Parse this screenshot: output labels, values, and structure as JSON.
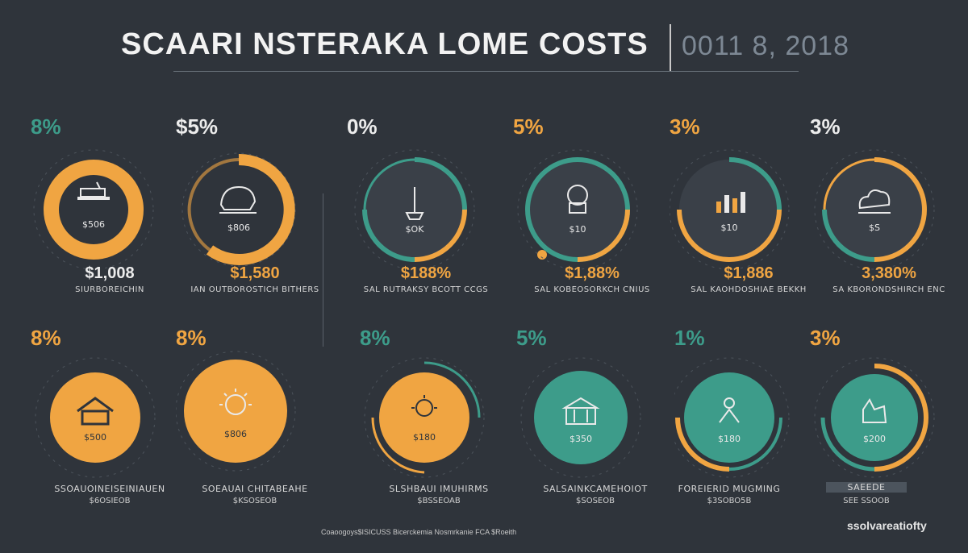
{
  "header": {
    "title": "SCAARI NSTERAKA LOME COSTS",
    "subtitle": "0011 8, 2018"
  },
  "colors": {
    "background": "#2f343b",
    "orange": "#f0a542",
    "teal": "#3d9c8a",
    "dark_disc": "#3a4048",
    "text": "#ececec"
  },
  "stats_row1": [
    {
      "pct": "8%",
      "pct_color": "teal",
      "amount": "$1,008",
      "caption": "SIURBOREICHIN",
      "icon_text": "$506",
      "icon": "desk-icon",
      "disc": "orange-full"
    },
    {
      "pct": "$5%",
      "pct_color": "white",
      "amount": "$1,580",
      "caption": "IAN OUTBOROSTICH BITHERS",
      "icon_text": "$806",
      "icon": "appliance-icon",
      "disc": "orange-ring"
    },
    {
      "pct": "0%",
      "pct_color": "white",
      "amount": "$188%",
      "caption": "SAL RUTRAKSY BCOTT CCGS",
      "icon_text": "$OK",
      "icon": "lamp-icon",
      "disc": "dark-teal-ring"
    },
    {
      "pct": "5%",
      "pct_color": "orange",
      "amount": "$1,88%",
      "caption": "SAL KOBEOSORKCH CNIUS",
      "icon_text": "$10",
      "icon": "chef-icon",
      "disc": "dark-teal-ring2"
    },
    {
      "pct": "3%",
      "pct_color": "orange",
      "amount": "$1,886",
      "caption": "SAL KAOHDOSHIAE BEKKH",
      "icon_text": "$10",
      "icon": "chart-icon",
      "disc": "dark-orange-ring"
    },
    {
      "pct": "3%",
      "pct_color": "white",
      "amount": "3,380%",
      "caption": "SA KBORONDSHIRCH ENC",
      "icon_text": "$S",
      "icon": "cloud-icon",
      "disc": "dark-orange-ring2"
    }
  ],
  "stats_row2": [
    {
      "pct": "8%",
      "pct_color": "orange",
      "icon_text": "$500",
      "icon": "house-icon",
      "caption": "SSOAUOINEISEINIAUEN",
      "caption2": "$6OSIEOB",
      "disc": "orange-solid"
    },
    {
      "pct": "8%",
      "pct_color": "orange",
      "icon_text": "$806",
      "icon": "sun-icon",
      "caption": "SOEAUAI CHITABEAHE",
      "caption2": "$KSOSEOB",
      "disc": "orange-solid-big"
    },
    {
      "pct": "8%",
      "pct_color": "teal",
      "icon_text": "$180",
      "icon": "spark-icon",
      "caption": "SLSHBAUI IMUHIRMS",
      "caption2": "$BSSEOAB",
      "disc": "orange-solid-ring"
    },
    {
      "pct": "5%",
      "pct_color": "teal",
      "icon_text": "$350",
      "icon": "building-icon",
      "caption": "SALSAINKCAMEHOIOT",
      "caption2": "$SOSEOB",
      "disc": "teal-solid"
    },
    {
      "pct": "1%",
      "pct_color": "teal",
      "icon_text": "$180",
      "icon": "figure-icon",
      "caption": "FOREIERID MUGMING",
      "caption2": "$3SOBO5B",
      "disc": "teal-solid-ring"
    },
    {
      "pct": "3%",
      "pct_color": "orange",
      "icon_text": "$200",
      "icon": "hand-icon",
      "caption": "SAEEDE",
      "caption2": "SEE SSOOB",
      "disc": "teal-solid-orange"
    }
  ],
  "footer": {
    "note": "Coaoogoys$ISICUSS Bicerckemia Nosmrkanie FCA $Roeith",
    "brand": "ssolvareatiofty"
  }
}
